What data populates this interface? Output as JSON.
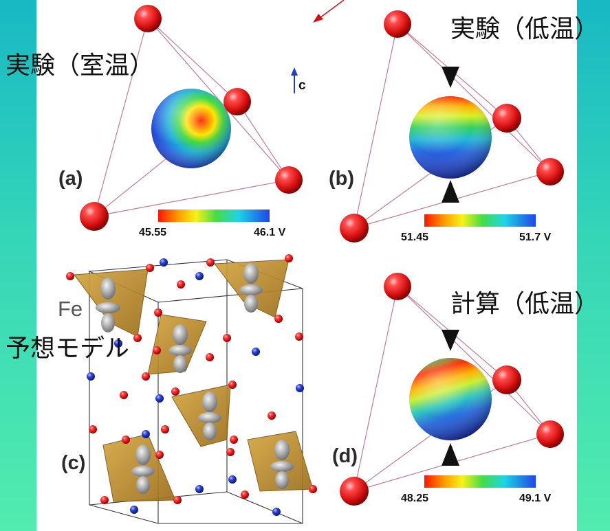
{
  "labels": {
    "exp_room": "実験（室温）",
    "exp_low": "実験（低温）",
    "calc_low": "計算（低温）",
    "model": "予想モデル",
    "fe": "Fe",
    "axis_c": "c"
  },
  "panels": {
    "a": "(a)",
    "b": "(b)",
    "c": "(c)",
    "d": "(d)"
  },
  "scales": {
    "a": {
      "min": "45.55",
      "max": "46.1 V"
    },
    "b": {
      "min": "51.45",
      "max": "51.7 V"
    },
    "d": {
      "min": "48.25",
      "max": "49.1 V"
    }
  },
  "colors": {
    "background_top": "#18b8c4",
    "background_bottom": "#52ecae",
    "atom_red": "#e21818",
    "atom_blue": "#1a2ec0",
    "tetrahedron": "#b8892a",
    "arrow": "#d01010"
  }
}
